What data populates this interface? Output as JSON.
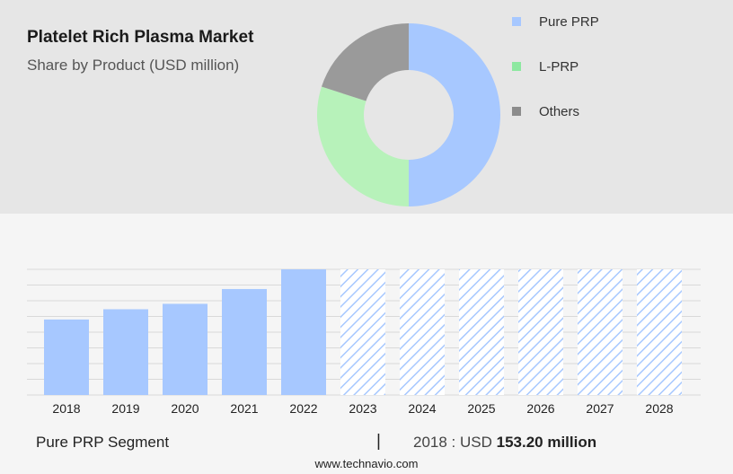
{
  "header": {
    "title": "Platelet Rich Plasma Market",
    "subtitle": "Share by Product (USD million)"
  },
  "legend": [
    {
      "label": "Pure PRP",
      "color": "#a7c8ff"
    },
    {
      "label": "L-PRP",
      "color": "#8de8a0"
    },
    {
      "label": "Others",
      "color": "#8c8c8c"
    }
  ],
  "chart_data": [
    {
      "type": "pie",
      "variant": "donut",
      "series": [
        {
          "name": "Pure PRP",
          "value": 50,
          "color": "#a7c8ff"
        },
        {
          "name": "L-PRP",
          "value": 30,
          "color": "#b7f2ba"
        },
        {
          "name": "Others",
          "value": 20,
          "color": "#9a9a9a"
        }
      ]
    },
    {
      "type": "bar",
      "categories": [
        "2018",
        "2019",
        "2020",
        "2021",
        "2022",
        "2023",
        "2024",
        "2025",
        "2026",
        "2027",
        "2028"
      ],
      "values": [
        153.2,
        174,
        185,
        215,
        255,
        null,
        null,
        null,
        null,
        null,
        null
      ],
      "forecast_from": "2023",
      "ylim": [
        0,
        255
      ],
      "grid": true,
      "bar_color": "#a7c8ff",
      "forecast_style": "hatched"
    }
  ],
  "footer": {
    "segment": "Pure PRP Segment",
    "divider": "|",
    "year_label": "2018 : USD ",
    "value": "153.20 million"
  },
  "website": "www.technavio.com"
}
